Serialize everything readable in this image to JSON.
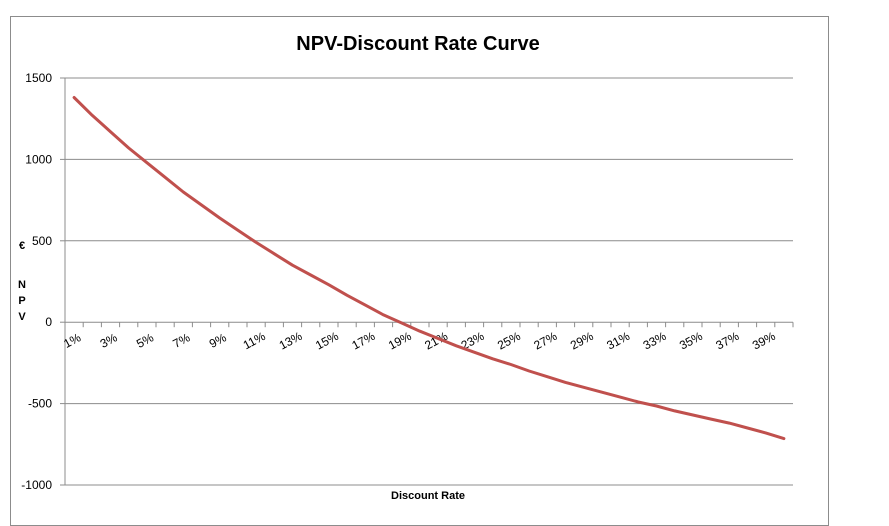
{
  "chart_data": {
    "type": "line",
    "title": "NPV-Discount Rate Curve",
    "xlabel": "Discount Rate",
    "ylabel": "NPV",
    "ylabel_unit": "€",
    "x": [
      "1%",
      "2%",
      "3%",
      "4%",
      "5%",
      "6%",
      "7%",
      "8%",
      "9%",
      "10%",
      "11%",
      "12%",
      "13%",
      "14%",
      "15%",
      "16%",
      "17%",
      "18%",
      "19%",
      "20%",
      "21%",
      "22%",
      "23%",
      "24%",
      "25%",
      "26%",
      "27%",
      "28%",
      "29%",
      "30%",
      "31%",
      "32%",
      "33%",
      "34%",
      "35%",
      "36%",
      "37%",
      "38%",
      "39%",
      "40%"
    ],
    "x_tick_labels": [
      "1%",
      "3%",
      "5%",
      "7%",
      "9%",
      "11%",
      "13%",
      "15%",
      "17%",
      "19%",
      "21%",
      "23%",
      "25%",
      "27%",
      "29%",
      "31%",
      "33%",
      "35%",
      "37%",
      "39%"
    ],
    "series": [
      {
        "values": [
          1380,
          1270,
          1170,
          1070,
          980,
          890,
          800,
          720,
          640,
          565,
          490,
          420,
          350,
          290,
          230,
          165,
          105,
          45,
          -5,
          -55,
          -100,
          -145,
          -185,
          -225,
          -260,
          -300,
          -335,
          -370,
          -400,
          -430,
          -460,
          -490,
          -515,
          -545,
          -570,
          -595,
          -620,
          -650,
          -680,
          -715
        ],
        "color": "#c0504d"
      }
    ],
    "ylim": [
      -1000,
      1500
    ],
    "yticks": [
      -1000,
      -500,
      0,
      500,
      1000,
      1500
    ],
    "grid": true,
    "legend": "none"
  }
}
